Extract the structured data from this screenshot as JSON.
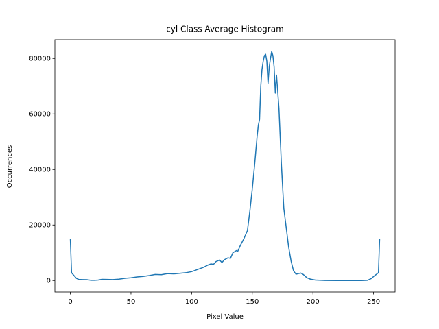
{
  "chart_data": {
    "type": "line",
    "title": "cyl Class Average Histogram",
    "x_label": "Pixel Value",
    "y_label": "Occurrences",
    "xlim": [
      -12.75,
      267.75
    ],
    "ylim": [
      -4130,
      86730
    ],
    "xticks": [
      0,
      50,
      100,
      150,
      200,
      250
    ],
    "yticks": [
      0,
      20000,
      40000,
      60000,
      80000
    ],
    "grid": false,
    "series": [
      {
        "color": "#1f77b4",
        "x": [
          0,
          1,
          3,
          5,
          7,
          10,
          14,
          17,
          20,
          23,
          26,
          30,
          35,
          40,
          45,
          50,
          55,
          60,
          65,
          70,
          75,
          80,
          85,
          90,
          95,
          100,
          105,
          110,
          113,
          116,
          118,
          120,
          123,
          125,
          127,
          130,
          132,
          134,
          137,
          138,
          140,
          143,
          146,
          148,
          150,
          152,
          154,
          155,
          156,
          157,
          158,
          159,
          160,
          161,
          162,
          163,
          164,
          165,
          166,
          167,
          168,
          169,
          170,
          171,
          172,
          173,
          174,
          176,
          178,
          180,
          182,
          184,
          186,
          188,
          190,
          192,
          195,
          198,
          202,
          210,
          220,
          230,
          240,
          245,
          248,
          251,
          254,
          255
        ],
        "values": [
          15000,
          2800,
          1800,
          800,
          400,
          350,
          300,
          100,
          100,
          200,
          450,
          400,
          350,
          500,
          800,
          1000,
          1300,
          1500,
          1800,
          2200,
          2100,
          2500,
          2400,
          2600,
          2800,
          3200,
          4000,
          4800,
          5500,
          6000,
          5800,
          6800,
          7400,
          6500,
          7500,
          8200,
          8000,
          10000,
          10800,
          10500,
          12500,
          15000,
          18000,
          25000,
          33000,
          42000,
          52000,
          56000,
          58000,
          70000,
          76000,
          79000,
          81000,
          81500,
          79000,
          71000,
          77000,
          80000,
          82500,
          81000,
          77000,
          67500,
          74000,
          68000,
          62000,
          52000,
          42000,
          26000,
          19000,
          12000,
          7000,
          3500,
          2300,
          2500,
          2700,
          2200,
          1000,
          500,
          200,
          50,
          0,
          0,
          0,
          100,
          700,
          1800,
          2800,
          15000
        ]
      }
    ]
  }
}
